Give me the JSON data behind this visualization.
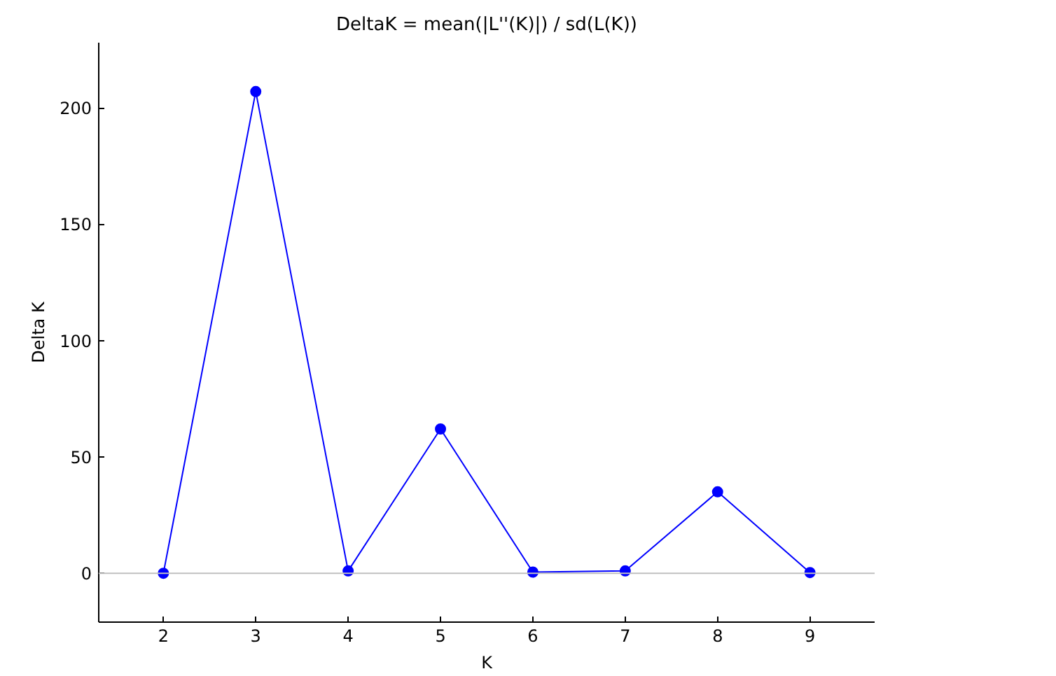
{
  "chart_data": {
    "type": "line",
    "title": "DeltaK = mean(|L''(K)|) / sd(L(K))",
    "xlabel": "K",
    "ylabel": "Delta K",
    "x": [
      2,
      3,
      4,
      5,
      6,
      7,
      8,
      9
    ],
    "series": [
      {
        "color": "#0000ff",
        "values": [
          0,
          207,
          1,
          62,
          0.5,
          1,
          35,
          0.3
        ]
      }
    ],
    "marker": "circle",
    "line_style": "solid",
    "grid": false,
    "xlim": [
      1.3,
      9.7
    ],
    "ylim": [
      -21,
      228
    ],
    "xticks": [
      2,
      3,
      4,
      5,
      6,
      7,
      8,
      9
    ],
    "yticks": [
      0,
      50,
      100,
      150,
      200
    ],
    "ref_lines": [
      {
        "axis": "y",
        "value": 0,
        "color": "#c0c0c0"
      }
    ]
  }
}
